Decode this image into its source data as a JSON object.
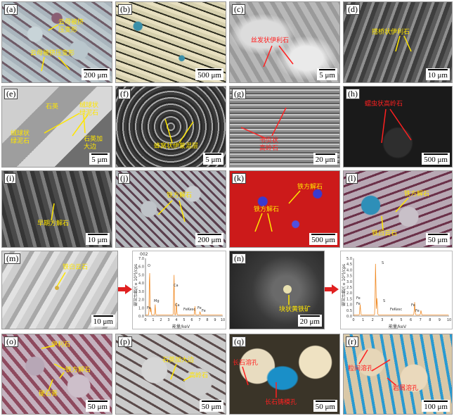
{
  "panels": {
    "a": {
      "label": "(a)",
      "scale": "200 μm",
      "ann": [
        "云母被挤",
        "压变形",
        "云母被挤压变形"
      ]
    },
    "b": {
      "label": "(b)",
      "scale": "500 μm"
    },
    "c": {
      "label": "(c)",
      "scale": "5 μm",
      "ann": [
        "丝发状伊利石"
      ]
    },
    "d": {
      "label": "(d)",
      "scale": "10 μm",
      "ann": [
        "搭桥状伊利石"
      ]
    },
    "e": {
      "label": "(e)",
      "scale": "5 μm",
      "ann": [
        "石英",
        "绒球状",
        "绿泥石",
        "绒球状",
        "绿泥石",
        "石英加",
        "大边"
      ]
    },
    "f": {
      "label": "(f)",
      "scale": "5 μm",
      "ann": [
        "蜂窝状伊蒙混层"
      ]
    },
    "g": {
      "label": "(g)",
      "scale": "20 μm",
      "ann": [
        "书页状",
        "高岭石"
      ]
    },
    "h": {
      "label": "(h)",
      "scale": "500 μm",
      "ann": [
        "蠕虫状高岭石"
      ]
    },
    "i": {
      "label": "(i)",
      "scale": "10 μm",
      "ann": [
        "早期方解石"
      ]
    },
    "j": {
      "label": "(j)",
      "scale": "200 μm",
      "ann": [
        "铁方解石"
      ]
    },
    "k": {
      "label": "(k)",
      "scale": "500 μm",
      "ann": [
        "铁方解石",
        "铁方解石"
      ]
    },
    "l": {
      "label": "(l)",
      "scale": "50 μm",
      "ann": [
        "铁方解石",
        "铁白云石"
      ]
    },
    "m": {
      "label": "(m)",
      "scale": "10 μm",
      "ann": [
        "铁白云石"
      ]
    },
    "n": {
      "label": "(n)",
      "scale": "20 μm",
      "ann": [
        "块状黄铁矿"
      ]
    },
    "o": {
      "label": "(o)",
      "scale": "50 μm",
      "ann": [
        "伊利石",
        "铁方解石",
        "硬石膏"
      ]
    },
    "p": {
      "label": "(p)",
      "scale": "50 μm",
      "ann": [
        "石英加大边",
        "高岭石"
      ]
    },
    "q": {
      "label": "(q)",
      "scale": "50 μm",
      "ann": [
        "长石溶孔",
        "长石铸模孔"
      ]
    },
    "r": {
      "label": "(r)",
      "scale": "100 μm",
      "ann": [
        "粒间溶孔",
        "岩屑溶孔"
      ]
    }
  },
  "spectra": {
    "m": {
      "id_label": "002",
      "ylabel": "相对计数/(×10³)/cps",
      "xlabel": "能量/keV",
      "yticks": [
        "0.0",
        "1.0",
        "2.0",
        "3.0",
        "4.0",
        "5.0",
        "6.0",
        "7.0"
      ],
      "xticks": [
        "0",
        "1",
        "2",
        "3",
        "4",
        "5",
        "6",
        "7",
        "8",
        "9",
        "10"
      ],
      "peaks_text": [
        "O",
        "Mg",
        "Fe",
        "Ca",
        "Ca",
        "FeKesc",
        "Fe",
        "Fe"
      ]
    },
    "n": {
      "ylabel": "相对计数/(×10³)/cps",
      "xlabel": "能量/keV",
      "yticks": [
        "0.0",
        "0.5",
        "1.0",
        "1.5",
        "2.0",
        "2.5",
        "3.0",
        "3.5",
        "4.0",
        "4.5",
        "5.0"
      ],
      "xticks": [
        "0",
        "1",
        "2",
        "3",
        "4",
        "5",
        "6",
        "7",
        "8",
        "9",
        "10"
      ],
      "peaks_text": [
        "S",
        "Fe",
        "Fe",
        "S",
        "FeKesc",
        "Fe",
        "Fe"
      ]
    }
  },
  "colors": {
    "annotation": "#ffe600",
    "annotation_red": "#ff2020",
    "spectrum": "#f08a24"
  }
}
